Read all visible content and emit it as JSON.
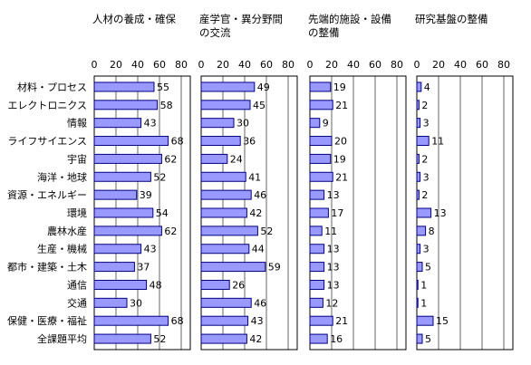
{
  "chart_data": {
    "type": "bar",
    "orientation": "horizontal",
    "categories": [
      "材料・プロセス",
      "エレクトロニクス",
      "情報",
      "ライフサイエンス",
      "宇宙",
      "海洋・地球",
      "資源・エネルギー",
      "環境",
      "農林水産",
      "生産・機械",
      "都市・建築・土木",
      "通信",
      "交通",
      "保健・医療・福祉",
      "全課題平均"
    ],
    "xlim": [
      0,
      80
    ],
    "xticks": [
      0,
      20,
      40,
      60,
      80
    ],
    "grid": true,
    "series": [
      {
        "name": "人材の養成・確保",
        "color": "#9999ff",
        "values": [
          55,
          58,
          43,
          68,
          62,
          52,
          39,
          54,
          62,
          43,
          37,
          48,
          30,
          68,
          52
        ]
      },
      {
        "name": "産学官・異分野間の交流",
        "color": "#9999ff",
        "values": [
          49,
          45,
          30,
          36,
          24,
          41,
          46,
          42,
          52,
          44,
          59,
          26,
          46,
          43,
          42
        ]
      },
      {
        "name": "先端的施設・設備の整備",
        "color": "#9999ff",
        "values": [
          19,
          21,
          9,
          20,
          19,
          21,
          13,
          17,
          11,
          13,
          13,
          13,
          12,
          21,
          16
        ]
      },
      {
        "name": "研究基盤の整備",
        "color": "#9999ff",
        "values": [
          4,
          2,
          3,
          11,
          2,
          3,
          2,
          13,
          8,
          3,
          5,
          1,
          1,
          15,
          5
        ]
      }
    ]
  }
}
